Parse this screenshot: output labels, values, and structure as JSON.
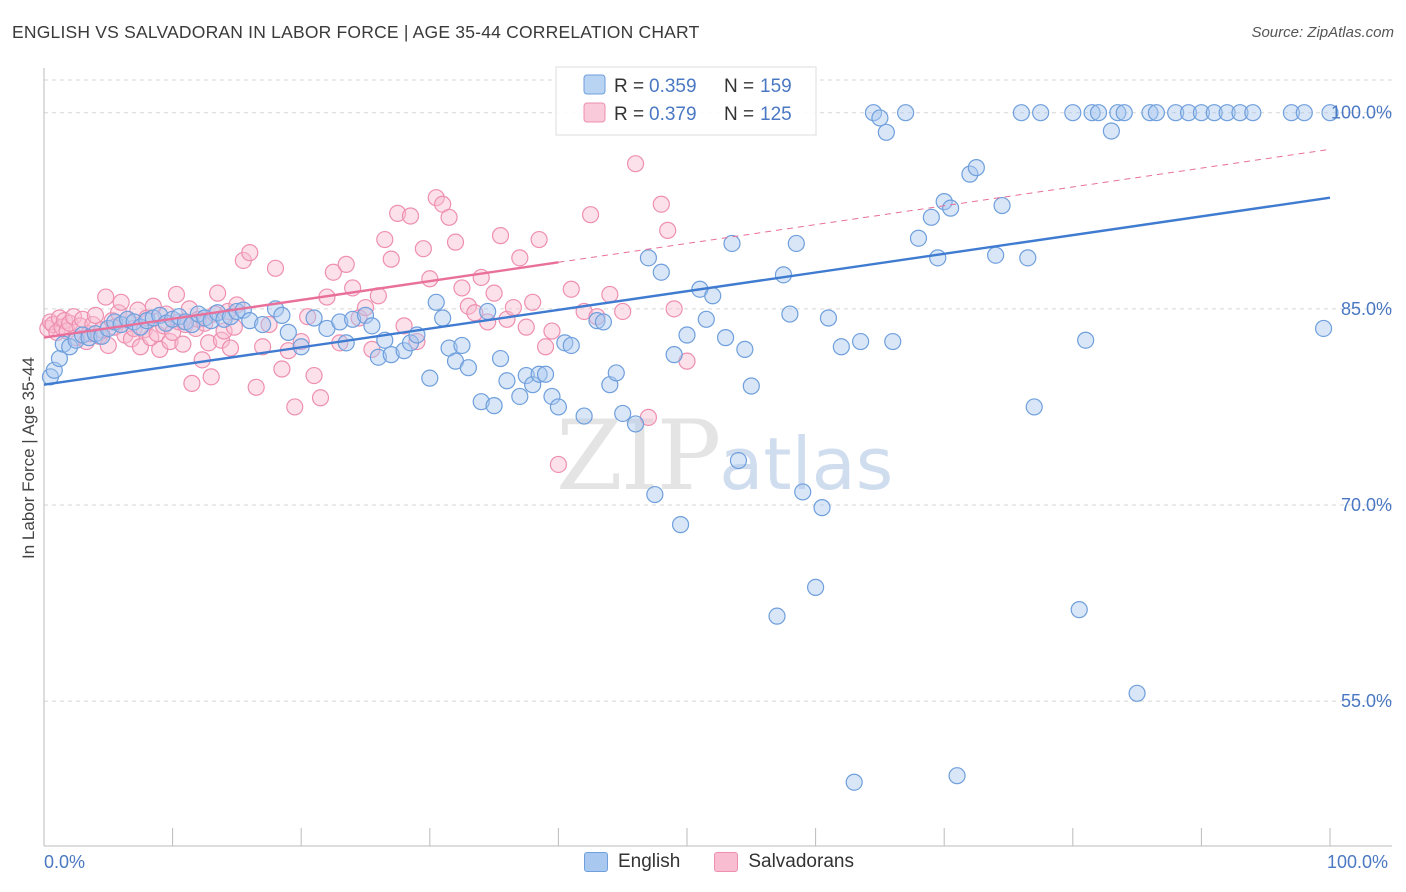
{
  "header": {
    "title": "ENGLISH VS SALVADORAN IN LABOR FORCE | AGE 35-44 CORRELATION CHART",
    "source": "Source: ZipAtlas.com"
  },
  "watermark": {
    "zip": "ZIP",
    "atlas": "atlas"
  },
  "colors": {
    "english_fill": "#a8c8f0",
    "english_stroke": "#6f9fdc",
    "english_line": "#3f7bd0",
    "salv_fill": "#f8bdd0",
    "salv_stroke": "#ee8fb0",
    "salv_line": "#e8709a",
    "tick_label": "#4a78c2",
    "grid": "#d6d6d6"
  },
  "legend_top": [
    {
      "series": "English",
      "r_label": "R = ",
      "r_value": "0.359",
      "n_label": "N = ",
      "n_value": "159"
    },
    {
      "series": "Salvadorans",
      "r_label": "R = ",
      "r_value": "0.379",
      "n_label": "N = ",
      "n_value": "125"
    }
  ],
  "chart_data": {
    "type": "scatter",
    "title": "ENGLISH VS SALVADORAN IN LABOR FORCE | AGE 35-44 CORRELATION CHART",
    "xlabel": "",
    "ylabel": "In Labor Force | Age 35-44",
    "xlim": [
      0,
      100
    ],
    "ylim": [
      44,
      102.5
    ],
    "x_tick_labels": [
      "0.0%",
      "100.0%"
    ],
    "y_ticks": [
      55,
      70,
      85,
      100
    ],
    "y_tick_labels": [
      "55.0%",
      "70.0%",
      "85.0%",
      "100.0%"
    ],
    "grid": "horizontal dashed",
    "series": [
      {
        "name": "English",
        "R": 0.359,
        "N": 159,
        "trend": {
          "x": [
            0,
            100
          ],
          "y": [
            79.2,
            93.5
          ]
        },
        "points": [
          [
            0.5,
            79.8
          ],
          [
            0.8,
            80.3
          ],
          [
            1.2,
            81.2
          ],
          [
            1.5,
            82.3
          ],
          [
            2,
            82.1
          ],
          [
            2.5,
            82.6
          ],
          [
            3,
            83
          ],
          [
            3.5,
            82.8
          ],
          [
            4,
            83.1
          ],
          [
            4.5,
            82.9
          ],
          [
            5,
            83.5
          ],
          [
            5.5,
            84
          ],
          [
            6,
            83.8
          ],
          [
            6.5,
            84.2
          ],
          [
            7,
            84
          ],
          [
            7.5,
            83.6
          ],
          [
            8,
            84.1
          ],
          [
            8.5,
            84.3
          ],
          [
            9,
            84.5
          ],
          [
            9.5,
            83.9
          ],
          [
            10,
            84.2
          ],
          [
            10.5,
            84.4
          ],
          [
            11,
            84
          ],
          [
            11.5,
            83.8
          ],
          [
            12,
            84.6
          ],
          [
            12.5,
            84.3
          ],
          [
            13,
            84.1
          ],
          [
            13.5,
            84.7
          ],
          [
            14,
            84.2
          ],
          [
            14.5,
            84.4
          ],
          [
            15,
            84.8
          ],
          [
            15.5,
            84.9
          ],
          [
            16,
            84.1
          ],
          [
            17,
            83.8
          ],
          [
            18,
            85
          ],
          [
            18.5,
            84.5
          ],
          [
            19,
            83.2
          ],
          [
            20,
            82.1
          ],
          [
            21,
            84.3
          ],
          [
            22,
            83.5
          ],
          [
            23,
            84
          ],
          [
            23.5,
            82.4
          ],
          [
            24,
            84.2
          ],
          [
            25,
            84.5
          ],
          [
            25.5,
            83.7
          ],
          [
            26,
            81.3
          ],
          [
            26.5,
            82.6
          ],
          [
            27,
            81.5
          ],
          [
            28,
            81.8
          ],
          [
            28.5,
            82.4
          ],
          [
            29,
            83
          ],
          [
            30,
            79.7
          ],
          [
            30.5,
            85.5
          ],
          [
            31,
            84.3
          ],
          [
            31.5,
            82
          ],
          [
            32,
            81
          ],
          [
            32.5,
            82.2
          ],
          [
            33,
            80.5
          ],
          [
            34,
            77.9
          ],
          [
            34.5,
            84.8
          ],
          [
            35,
            77.6
          ],
          [
            35.5,
            81.2
          ],
          [
            36,
            79.5
          ],
          [
            37,
            78.3
          ],
          [
            37.5,
            79.9
          ],
          [
            38,
            79.2
          ],
          [
            38.5,
            80
          ],
          [
            39,
            80
          ],
          [
            39.5,
            78.3
          ],
          [
            40,
            77.5
          ],
          [
            40.5,
            82.4
          ],
          [
            41,
            82.2
          ],
          [
            42,
            76.8
          ],
          [
            43,
            84.1
          ],
          [
            43.5,
            84
          ],
          [
            44,
            79.2
          ],
          [
            44.5,
            80.1
          ],
          [
            45,
            77
          ],
          [
            46,
            76.2
          ],
          [
            47,
            88.9
          ],
          [
            47.5,
            70.8
          ],
          [
            48,
            87.8
          ],
          [
            49,
            81.5
          ],
          [
            49.5,
            68.5
          ],
          [
            50,
            83
          ],
          [
            51,
            86.5
          ],
          [
            51.5,
            84.2
          ],
          [
            52,
            86
          ],
          [
            53,
            82.8
          ],
          [
            53.5,
            90
          ],
          [
            54,
            73.4
          ],
          [
            54.5,
            81.9
          ],
          [
            55,
            79.1
          ],
          [
            57,
            61.5
          ],
          [
            57.5,
            87.6
          ],
          [
            58,
            84.6
          ],
          [
            58.5,
            90
          ],
          [
            59,
            71
          ],
          [
            60,
            63.7
          ],
          [
            60.5,
            69.8
          ],
          [
            61,
            84.3
          ],
          [
            62,
            82.1
          ],
          [
            63,
            48.8
          ],
          [
            63.5,
            82.5
          ],
          [
            64.5,
            100
          ],
          [
            65,
            99.6
          ],
          [
            65.5,
            98.5
          ],
          [
            66,
            82.5
          ],
          [
            67,
            100
          ],
          [
            68,
            90.4
          ],
          [
            69,
            92
          ],
          [
            69.5,
            88.9
          ],
          [
            70,
            93.2
          ],
          [
            70.5,
            92.7
          ],
          [
            71,
            49.3
          ],
          [
            72,
            95.3
          ],
          [
            72.5,
            95.8
          ],
          [
            74,
            89.1
          ],
          [
            74.5,
            92.9
          ],
          [
            76,
            100
          ],
          [
            76.5,
            88.9
          ],
          [
            77,
            77.5
          ],
          [
            77.5,
            100
          ],
          [
            80,
            100
          ],
          [
            80.5,
            62
          ],
          [
            81,
            82.6
          ],
          [
            81.5,
            100
          ],
          [
            82,
            100
          ],
          [
            83,
            98.6
          ],
          [
            83.5,
            100
          ],
          [
            84,
            100
          ],
          [
            85,
            55.6
          ],
          [
            86,
            100
          ],
          [
            86.5,
            100
          ],
          [
            88,
            100
          ],
          [
            89,
            100
          ],
          [
            90,
            100
          ],
          [
            91,
            100
          ],
          [
            92,
            100
          ],
          [
            93,
            100
          ],
          [
            94,
            100
          ],
          [
            97,
            100
          ],
          [
            98,
            100
          ],
          [
            99.5,
            83.5
          ],
          [
            100,
            100
          ]
        ]
      },
      {
        "name": "Salvadorans",
        "R": 0.379,
        "N": 125,
        "trend": {
          "x": [
            0,
            100
          ],
          "y": [
            82.8,
            97.2
          ]
        },
        "points": [
          [
            0.3,
            83.5
          ],
          [
            0.5,
            84
          ],
          [
            0.7,
            83.8
          ],
          [
            1,
            83.2
          ],
          [
            1.2,
            84.3
          ],
          [
            1.4,
            83.6
          ],
          [
            1.6,
            84.1
          ],
          [
            1.8,
            83.3
          ],
          [
            2,
            83.9
          ],
          [
            2.3,
            84.4
          ],
          [
            2.5,
            82.8
          ],
          [
            2.8,
            83.7
          ],
          [
            3,
            84.2
          ],
          [
            3.3,
            82.5
          ],
          [
            3.5,
            83.1
          ],
          [
            3.8,
            83.8
          ],
          [
            4,
            84.5
          ],
          [
            4.3,
            82.9
          ],
          [
            4.5,
            83.4
          ],
          [
            4.8,
            85.9
          ],
          [
            5,
            82.2
          ],
          [
            5.3,
            84.1
          ],
          [
            5.5,
            83.6
          ],
          [
            5.8,
            84.7
          ],
          [
            6,
            85.5
          ],
          [
            6.3,
            83
          ],
          [
            6.5,
            84.2
          ],
          [
            6.8,
            82.7
          ],
          [
            7,
            83.5
          ],
          [
            7.3,
            84.9
          ],
          [
            7.5,
            82.1
          ],
          [
            7.8,
            83.4
          ],
          [
            8,
            84.3
          ],
          [
            8.3,
            82.8
          ],
          [
            8.5,
            85.2
          ],
          [
            8.8,
            83.1
          ],
          [
            9,
            81.9
          ],
          [
            9.3,
            83.7
          ],
          [
            9.5,
            84.6
          ],
          [
            9.8,
            82.5
          ],
          [
            10,
            83.2
          ],
          [
            10.3,
            86.1
          ],
          [
            10.5,
            84
          ],
          [
            10.8,
            82.3
          ],
          [
            11,
            83.8
          ],
          [
            11.3,
            85
          ],
          [
            11.5,
            79.3
          ],
          [
            11.8,
            83.5
          ],
          [
            12,
            84.2
          ],
          [
            12.3,
            81.1
          ],
          [
            12.5,
            83.9
          ],
          [
            12.8,
            82.4
          ],
          [
            13,
            79.8
          ],
          [
            13.3,
            84.6
          ],
          [
            13.5,
            86.2
          ],
          [
            13.8,
            82.6
          ],
          [
            14,
            83.3
          ],
          [
            14.3,
            84.8
          ],
          [
            14.5,
            82
          ],
          [
            14.8,
            83.6
          ],
          [
            15,
            85.3
          ],
          [
            15.5,
            88.7
          ],
          [
            16,
            89.3
          ],
          [
            16.5,
            79
          ],
          [
            17,
            82.1
          ],
          [
            17.5,
            83.8
          ],
          [
            18,
            88.1
          ],
          [
            18.5,
            80.4
          ],
          [
            19,
            81.8
          ],
          [
            19.5,
            77.5
          ],
          [
            20,
            82.5
          ],
          [
            20.5,
            84.4
          ],
          [
            21,
            79.9
          ],
          [
            21.5,
            78.2
          ],
          [
            22,
            85.9
          ],
          [
            22.5,
            87.8
          ],
          [
            23,
            82.4
          ],
          [
            23.5,
            88.4
          ],
          [
            24,
            86.6
          ],
          [
            24.5,
            84.3
          ],
          [
            25,
            85.1
          ],
          [
            25.5,
            81.9
          ],
          [
            26,
            86
          ],
          [
            26.5,
            90.3
          ],
          [
            27,
            88.8
          ],
          [
            27.5,
            92.3
          ],
          [
            28,
            83.7
          ],
          [
            28.5,
            92.1
          ],
          [
            29,
            82.5
          ],
          [
            29.5,
            89.6
          ],
          [
            30,
            87.3
          ],
          [
            30.5,
            93.5
          ],
          [
            31,
            93
          ],
          [
            31.5,
            92
          ],
          [
            32,
            90.1
          ],
          [
            32.5,
            86.6
          ],
          [
            33,
            85.2
          ],
          [
            33.5,
            84.7
          ],
          [
            34,
            87.4
          ],
          [
            34.5,
            84
          ],
          [
            35,
            86.2
          ],
          [
            35.5,
            90.6
          ],
          [
            36,
            84.2
          ],
          [
            36.5,
            85.1
          ],
          [
            37,
            88.9
          ],
          [
            37.5,
            83.6
          ],
          [
            38,
            85.5
          ],
          [
            38.5,
            90.3
          ],
          [
            39,
            82.1
          ],
          [
            39.5,
            83.3
          ],
          [
            40,
            73.1
          ],
          [
            41,
            86.5
          ],
          [
            42,
            84.8
          ],
          [
            42.5,
            92.2
          ],
          [
            43,
            84.4
          ],
          [
            44,
            86.1
          ],
          [
            45,
            84.8
          ],
          [
            46,
            96.1
          ],
          [
            47,
            76.7
          ],
          [
            48,
            93
          ],
          [
            48.5,
            91
          ],
          [
            49,
            85
          ],
          [
            50,
            81
          ]
        ]
      }
    ]
  }
}
